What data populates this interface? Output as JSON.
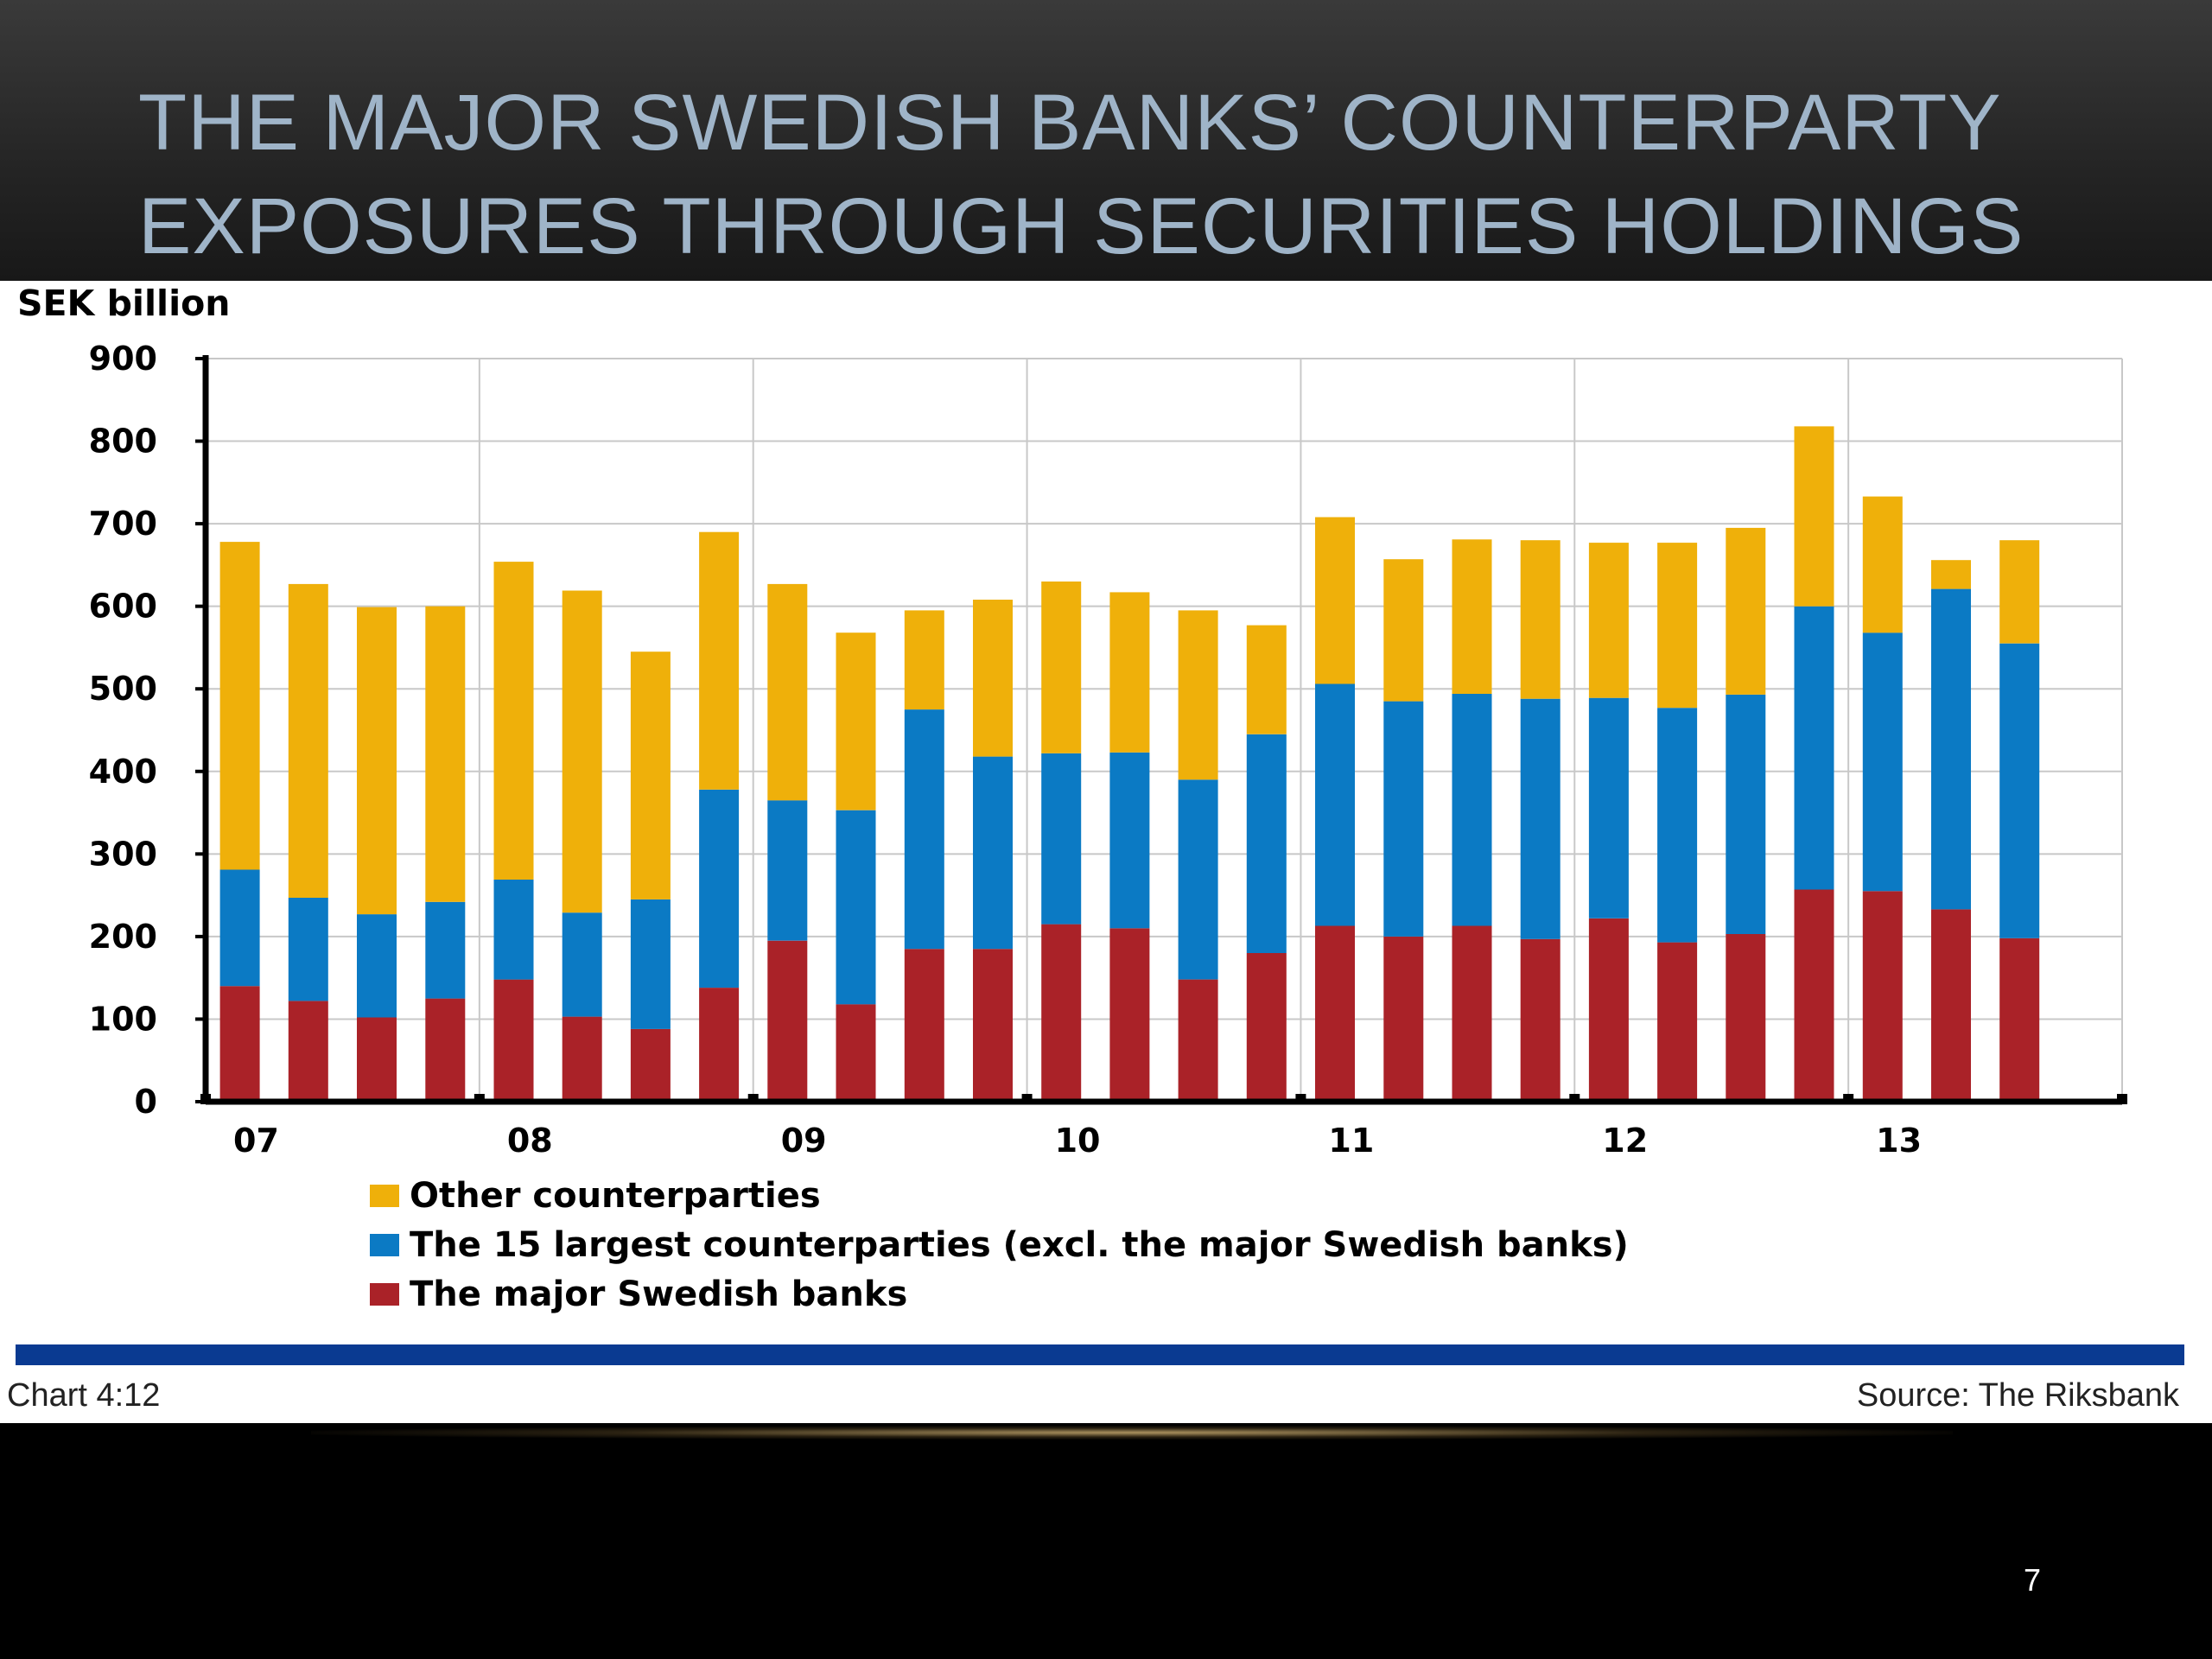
{
  "slide": {
    "title_line1": "THE MAJOR SWEDISH BANKS’ COUNTERPARTY",
    "title_line2": "EXPOSURES THROUGH SECURITIES HOLDINGS",
    "page_number": "7"
  },
  "chart_data": {
    "type": "bar",
    "stacked": true,
    "unit_label": "SEK billion",
    "ylim": [
      0,
      900
    ],
    "yticks": [
      0,
      100,
      200,
      300,
      400,
      500,
      600,
      700,
      800,
      900
    ],
    "year_labels": [
      "07",
      "08",
      "09",
      "10",
      "11",
      "12",
      "13"
    ],
    "bars_per_year": 4,
    "grid": true,
    "legend_position": "bottom",
    "series": [
      {
        "name": "The major Swedish banks",
        "color": "#aa2228",
        "values": [
          140,
          122,
          102,
          125,
          148,
          103,
          88,
          138,
          195,
          118,
          185,
          185,
          215,
          210,
          148,
          180,
          213,
          200,
          213,
          197,
          222,
          193,
          203,
          257,
          255,
          233,
          198
        ]
      },
      {
        "name": "The 15 largest counterparties (excl. the major Swedish banks)",
        "color": "#0b7ac4",
        "values": [
          141,
          125,
          125,
          117,
          121,
          126,
          157,
          240,
          170,
          235,
          290,
          233,
          207,
          213,
          242,
          265,
          293,
          285,
          281,
          291,
          267,
          284,
          290,
          343,
          313,
          388,
          357
        ]
      },
      {
        "name": "Other counterparties",
        "color": "#efb00a",
        "values": [
          397,
          380,
          372,
          358,
          385,
          390,
          300,
          312,
          262,
          215,
          120,
          190,
          208,
          194,
          205,
          132,
          202,
          172,
          187,
          192,
          188,
          200,
          202,
          218,
          165,
          35,
          125
        ]
      }
    ]
  },
  "chart_footer": {
    "chart_id": "Chart 4:12",
    "source": "Source: The Riksbank",
    "rule_color": "#0a3a91"
  }
}
